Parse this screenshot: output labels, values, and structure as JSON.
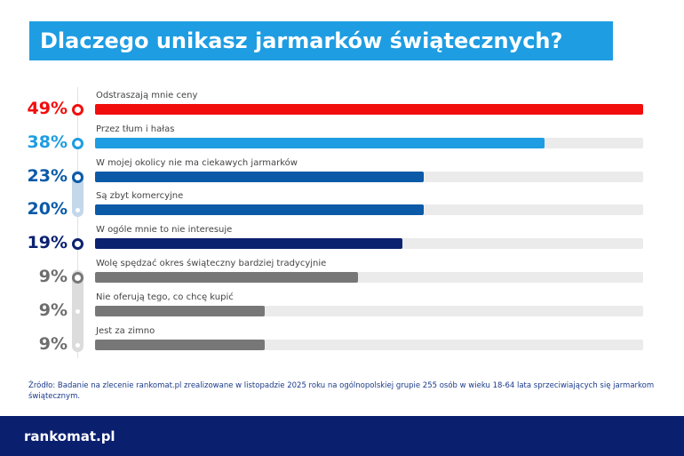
{
  "title": "Dlaczego unikasz jarmarków świątecznych?",
  "chart_data": {
    "type": "bar",
    "orientation": "horizontal",
    "title": "Dlaczego unikasz jarmarków świątecznych?",
    "unit": "%",
    "items": [
      {
        "label": "Odstraszają mnie ceny",
        "value": 49,
        "value_label": "49%",
        "bar_fill_percent": 100,
        "color": "#f20d0d"
      },
      {
        "label": "Przez tłum i hałas",
        "value": 38,
        "value_label": "38%",
        "bar_fill_percent": 82,
        "color": "#1e9de2"
      },
      {
        "label": "W mojej okolicy nie ma ciekawych jarmarków",
        "value": 23,
        "value_label": "23%",
        "bar_fill_percent": 60,
        "color": "#0b5aa8"
      },
      {
        "label": "Są zbyt komercyjne",
        "value": 20,
        "value_label": "20%",
        "bar_fill_percent": 60,
        "color": "#0b5aa8"
      },
      {
        "label": "W ogóle mnie to nie interesuje",
        "value": 19,
        "value_label": "19%",
        "bar_fill_percent": 56,
        "color": "#0b2270"
      },
      {
        "label": "Wolę spędzać okres świąteczny bardziej tradycyjnie",
        "value": 9,
        "value_label": "9%",
        "bar_fill_percent": 48,
        "color": "#777777"
      },
      {
        "label": "Nie oferują tego, co chcę kupić",
        "value": 9,
        "value_label": "9%",
        "bar_fill_percent": 31,
        "color": "#777777"
      },
      {
        "label": "Jest za zimno",
        "value": 9,
        "value_label": "9%",
        "bar_fill_percent": 31,
        "color": "#777777"
      }
    ],
    "track_color": "#ebebeb",
    "grid": false
  },
  "source": "Źródło: Badanie na zlecenie rankomat.pl zrealizowane w listopadzie 2025 roku na ogólnopolskiej grupie 255 osób w wieku 18-64 lata sprzeciwiających się jarmarkom świątecznym.",
  "footer": {
    "logo": "rankomat.pl",
    "background": "#0b1f6f"
  }
}
